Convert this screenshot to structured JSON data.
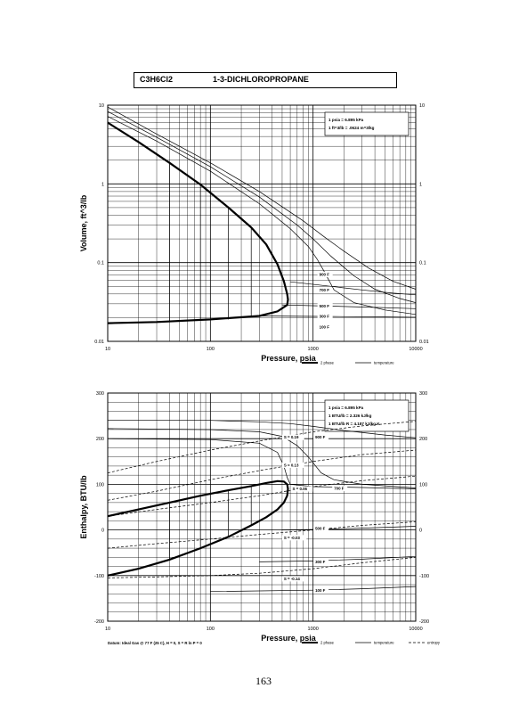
{
  "title_box": {
    "formula": "C3H6Cl2",
    "name": "1-3-DICHLOROPROPANE"
  },
  "page_number": "163",
  "chart_data": [
    {
      "type": "line",
      "xscale": "log",
      "yscale": "log",
      "xlim": [
        10,
        10000
      ],
      "ylim": [
        0.01,
        10
      ],
      "xlabel": "Pressure,  psia",
      "ylabel": "Volume, ft^3/lb",
      "xticks": [
        {
          "value": 10,
          "label": "10"
        },
        {
          "value": 100,
          "label": "100"
        },
        {
          "value": 1000,
          "label": "1000"
        },
        {
          "value": 10000,
          "label": "10000"
        }
      ],
      "yticks": [
        {
          "value": 0.01,
          "label": "0.01"
        },
        {
          "value": 0.1,
          "label": "0.1"
        },
        {
          "value": 1,
          "label": "1"
        },
        {
          "value": 10,
          "label": "10"
        }
      ],
      "grid": true,
      "conversions": [
        "1 psia  =  6.895 kPa",
        "1 ft^3/lb  =  .0624 m^3/kg"
      ],
      "legend": [
        {
          "label": "2 phase",
          "style": "thick"
        },
        {
          "label": "temperature",
          "style": "thin"
        }
      ],
      "series": [
        {
          "name": "2 phase",
          "style": "thick",
          "points": [
            [
              10,
              6.0
            ],
            [
              20,
              3.4
            ],
            [
              40,
              1.85
            ],
            [
              80,
              0.98
            ],
            [
              150,
              0.5
            ],
            [
              250,
              0.28
            ],
            [
              350,
              0.17
            ],
            [
              450,
              0.095
            ],
            [
              520,
              0.058
            ],
            [
              560,
              0.04
            ],
            [
              570,
              0.034
            ],
            [
              560,
              0.029
            ],
            [
              450,
              0.024
            ],
            [
              300,
              0.021
            ],
            [
              100,
              0.019
            ],
            [
              30,
              0.0176
            ],
            [
              10,
              0.017
            ]
          ]
        },
        {
          "name": "",
          "style": "thin",
          "points": [
            [
              10,
              7.2
            ],
            [
              30,
              3.5
            ],
            [
              100,
              1.45
            ],
            [
              300,
              0.56
            ],
            [
              600,
              0.27
            ],
            [
              900,
              0.16
            ],
            [
              1100,
              0.11
            ],
            [
              1300,
              0.075
            ],
            [
              1600,
              0.045
            ],
            [
              2500,
              0.031
            ],
            [
              5000,
              0.025
            ],
            [
              10000,
              0.022
            ]
          ]
        },
        {
          "name": "",
          "style": "thin",
          "points": [
            [
              10,
              8.3
            ],
            [
              30,
              3.9
            ],
            [
              100,
              1.65
            ],
            [
              300,
              0.68
            ],
            [
              700,
              0.3
            ],
            [
              1000,
              0.2
            ],
            [
              1500,
              0.12
            ],
            [
              2500,
              0.068
            ],
            [
              4000,
              0.046
            ],
            [
              7000,
              0.035
            ],
            [
              10000,
              0.031
            ]
          ]
        },
        {
          "name": "",
          "style": "thin",
          "points": [
            [
              10,
              9.5
            ],
            [
              30,
              4.3
            ],
            [
              100,
              1.85
            ],
            [
              300,
              0.8
            ],
            [
              800,
              0.34
            ],
            [
              1300,
              0.21
            ],
            [
              2000,
              0.14
            ],
            [
              3500,
              0.085
            ],
            [
              6000,
              0.058
            ],
            [
              10000,
              0.046
            ]
          ]
        },
        {
          "name": "",
          "style": "thin",
          "points": [
            [
              600,
              0.057
            ],
            [
              1500,
              0.05
            ],
            [
              3000,
              0.045
            ],
            [
              6000,
              0.041
            ],
            [
              10000,
              0.039
            ]
          ]
        },
        {
          "name": "",
          "style": "thin",
          "points": [
            [
              500,
              0.029
            ],
            [
              1500,
              0.028
            ],
            [
              4000,
              0.027
            ],
            [
              10000,
              0.026
            ]
          ]
        },
        {
          "name": "",
          "style": "thin",
          "points": [
            [
              300,
              0.021
            ],
            [
              1500,
              0.0207
            ],
            [
              5000,
              0.0204
            ],
            [
              10000,
              0.0202
            ]
          ]
        },
        {
          "name": "",
          "style": "thin",
          "points": [
            [
              40,
              1.85
            ],
            [
              40,
              0.0177
            ]
          ]
        },
        {
          "name": "",
          "style": "thin",
          "points": [
            [
              80,
              0.98
            ],
            [
              80,
              0.0183
            ]
          ]
        },
        {
          "name": "",
          "style": "thin",
          "points": [
            [
              150,
              0.5
            ],
            [
              150,
              0.019
            ]
          ]
        },
        {
          "name": "",
          "style": "thin",
          "points": [
            [
              250,
              0.28
            ],
            [
              250,
              0.0205
            ]
          ]
        }
      ],
      "curve_labels": [
        {
          "text": "900 F",
          "x": 1150,
          "y": 0.068
        },
        {
          "text": "700 F",
          "x": 1150,
          "y": 0.043
        },
        {
          "text": "500 F",
          "x": 1150,
          "y": 0.027
        },
        {
          "text": "300 F",
          "x": 1150,
          "y": 0.02
        },
        {
          "text": "100 F",
          "x": 1150,
          "y": 0.0145
        }
      ]
    },
    {
      "type": "line",
      "xscale": "log",
      "yscale": "linear",
      "xlim": [
        10,
        10000
      ],
      "ylim": [
        -200,
        300
      ],
      "xlabel": "Pressure,  psia",
      "ylabel": "Enthalpy, BTU/lb",
      "xticks": [
        {
          "value": 10,
          "label": "10"
        },
        {
          "value": 100,
          "label": "100"
        },
        {
          "value": 1000,
          "label": "1000"
        },
        {
          "value": 10000,
          "label": "10000"
        }
      ],
      "yticks": [
        {
          "value": -200,
          "label": "-200"
        },
        {
          "value": -100,
          "label": "-100"
        },
        {
          "value": 0,
          "label": "0"
        },
        {
          "value": 100,
          "label": "100"
        },
        {
          "value": 200,
          "label": "200"
        },
        {
          "value": 300,
          "label": "300"
        }
      ],
      "grid": true,
      "conversions": [
        "1 psia  =  6.895 kPa",
        "1 BTU/lb  =  2.326 kJ/kg",
        "1 BTU/lb R  =  4.187 kJ/kg K"
      ],
      "datum": "Datum: Ideal Gas @ 77 F (25 C),  H = 0,  S = R ln P = 0",
      "legend": [
        {
          "label": "2 phase",
          "style": "thick"
        },
        {
          "label": "temperature",
          "style": "thin"
        },
        {
          "label": "entropy",
          "style": "dashed"
        }
      ],
      "series": [
        {
          "name": "2 phase",
          "style": "thick",
          "points": [
            [
              10,
              30
            ],
            [
              20,
              45
            ],
            [
              40,
              60
            ],
            [
              80,
              75
            ],
            [
              150,
              87
            ],
            [
              250,
              96
            ],
            [
              350,
              103
            ],
            [
              450,
              107
            ],
            [
              520,
              106
            ],
            [
              560,
              100
            ],
            [
              570,
              90
            ],
            [
              560,
              75
            ],
            [
              520,
              60
            ],
            [
              450,
              45
            ],
            [
              350,
              28
            ],
            [
              250,
              10
            ],
            [
              150,
              -15
            ],
            [
              80,
              -40
            ],
            [
              40,
              -65
            ],
            [
              20,
              -85
            ],
            [
              10,
              -100
            ]
          ]
        },
        {
          "name": "",
          "style": "thin",
          "points": [
            [
              10,
              240
            ],
            [
              100,
              240
            ],
            [
              300,
              237
            ],
            [
              600,
              233
            ],
            [
              1000,
              227
            ],
            [
              2000,
              218
            ],
            [
              5000,
              208
            ],
            [
              10000,
              202
            ]
          ]
        },
        {
          "name": "",
          "style": "thin",
          "points": [
            [
              10,
              222
            ],
            [
              100,
              220
            ],
            [
              300,
              215
            ],
            [
              500,
              205
            ],
            [
              700,
              185
            ],
            [
              900,
              160
            ],
            [
              1200,
              125
            ],
            [
              1600,
              110
            ],
            [
              3000,
              100
            ],
            [
              10000,
              92
            ]
          ]
        },
        {
          "name": "",
          "style": "thin",
          "points": [
            [
              10,
              200
            ],
            [
              100,
              198
            ],
            [
              300,
              190
            ],
            [
              450,
              170
            ],
            [
              520,
              140
            ],
            [
              560,
              115
            ],
            [
              600,
              100
            ],
            [
              1000,
              95
            ],
            [
              3000,
              93
            ],
            [
              10000,
              90
            ]
          ]
        },
        {
          "name": "",
          "style": "thin",
          "points": [
            [
              500,
              0
            ],
            [
              1000,
              1
            ],
            [
              3000,
              4
            ],
            [
              10000,
              8
            ]
          ]
        },
        {
          "name": "",
          "style": "thin",
          "points": [
            [
              300,
              -70
            ],
            [
              1000,
              -68
            ],
            [
              3000,
              -64
            ],
            [
              10000,
              -58
            ]
          ]
        },
        {
          "name": "",
          "style": "thin",
          "points": [
            [
              100,
              -135
            ],
            [
              1000,
              -132
            ],
            [
              3000,
              -129
            ],
            [
              10000,
              -124
            ]
          ]
        },
        {
          "name": "",
          "style": "thin",
          "points": [
            [
              40,
              60
            ],
            [
              40,
              -65
            ]
          ]
        },
        {
          "name": "",
          "style": "thin",
          "points": [
            [
              80,
              75
            ],
            [
              80,
              -40
            ]
          ]
        },
        {
          "name": "",
          "style": "thin",
          "points": [
            [
              150,
              87
            ],
            [
              150,
              -15
            ]
          ]
        },
        {
          "name": "",
          "style": "thin",
          "points": [
            [
              250,
              96
            ],
            [
              250,
              10
            ]
          ]
        },
        {
          "name": "",
          "style": "dashed",
          "points": [
            [
              10,
              125
            ],
            [
              30,
              150
            ],
            [
              100,
              175
            ],
            [
              300,
              195
            ],
            [
              1000,
              215
            ],
            [
              3000,
              228
            ],
            [
              10000,
              238
            ]
          ]
        },
        {
          "name": "",
          "style": "dashed",
          "points": [
            [
              10,
              65
            ],
            [
              30,
              85
            ],
            [
              100,
              110
            ],
            [
              300,
              130
            ],
            [
              1000,
              150
            ],
            [
              3000,
              165
            ],
            [
              10000,
              175
            ]
          ]
        },
        {
          "name": "",
          "style": "dashed",
          "points": [
            [
              10,
              30
            ],
            [
              30,
              45
            ],
            [
              100,
              60
            ],
            [
              300,
              75
            ],
            [
              1000,
              95
            ],
            [
              3000,
              108
            ],
            [
              10000,
              118
            ]
          ]
        },
        {
          "name": "",
          "style": "dashed",
          "points": [
            [
              10,
              -40
            ],
            [
              30,
              -30
            ],
            [
              100,
              -20
            ],
            [
              300,
              -10
            ],
            [
              1000,
              0
            ],
            [
              3000,
              10
            ],
            [
              10000,
              18
            ]
          ]
        },
        {
          "name": "",
          "style": "dashed",
          "points": [
            [
              10,
              -105
            ],
            [
              30,
              -103
            ],
            [
              100,
              -100
            ],
            [
              300,
              -95
            ],
            [
              1000,
              -85
            ],
            [
              3000,
              -72
            ],
            [
              10000,
              -60
            ]
          ]
        }
      ],
      "curve_labels": [
        {
          "text": "900 F",
          "x": 1050,
          "y": 200
        },
        {
          "text": "700 F",
          "x": 1600,
          "y": 88
        },
        {
          "text": "500 F",
          "x": 1050,
          "y": 0
        },
        {
          "text": "300 F",
          "x": 1050,
          "y": -73
        },
        {
          "text": "100 F",
          "x": 1050,
          "y": -136
        },
        {
          "text": "S = 0.19",
          "x": 520,
          "y": 200
        },
        {
          "text": "S = 0.13",
          "x": 520,
          "y": 139
        },
        {
          "text": "S = 0.06",
          "x": 630,
          "y": 87
        },
        {
          "text": "S = -0.03",
          "x": 520,
          "y": -20
        },
        {
          "text": "S = -0.14",
          "x": 520,
          "y": -110
        }
      ]
    }
  ]
}
